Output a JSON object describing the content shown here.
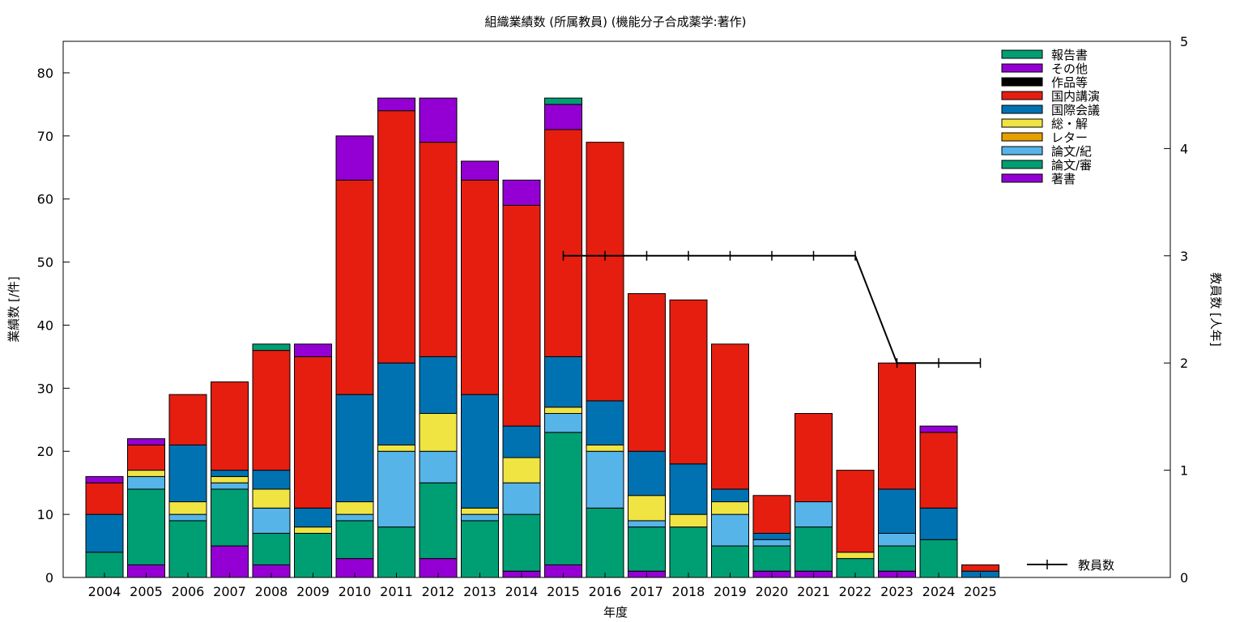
{
  "chart_data": {
    "type": "bar",
    "stacked": true,
    "title": "組織業績数 (所属教員) (機能分子合成薬学:著作)",
    "xlabel": "年度",
    "ylabel": "業績数 [/件]",
    "y2label": "教員数 [人年]",
    "ylim": [
      0,
      85
    ],
    "y2lim": [
      0,
      5
    ],
    "yticks": [
      0,
      10,
      20,
      30,
      40,
      50,
      60,
      70,
      80
    ],
    "y2ticks": [
      0,
      1,
      2,
      3,
      4,
      5
    ],
    "grid": false,
    "legend_position": "top-right",
    "categories": [
      "2004",
      "2005",
      "2006",
      "2007",
      "2008",
      "2009",
      "2010",
      "2011",
      "2012",
      "2013",
      "2014",
      "2015",
      "2016",
      "2017",
      "2018",
      "2019",
      "2020",
      "2021",
      "2022",
      "2023",
      "2024",
      "2025"
    ],
    "series": [
      {
        "name": "著書",
        "color": "#9400d3",
        "values": [
          0,
          2,
          0,
          5,
          2,
          0,
          3,
          0,
          3,
          0,
          1,
          2,
          0,
          1,
          0,
          0,
          1,
          1,
          0,
          1,
          0,
          0
        ]
      },
      {
        "name": "論文/審",
        "color": "#009e73",
        "values": [
          4,
          12,
          9,
          9,
          5,
          7,
          6,
          8,
          12,
          9,
          9,
          21,
          11,
          7,
          8,
          5,
          4,
          7,
          3,
          4,
          6,
          0
        ]
      },
      {
        "name": "論文/紀",
        "color": "#56b4e9",
        "values": [
          0,
          2,
          1,
          1,
          4,
          0,
          1,
          12,
          5,
          1,
          5,
          3,
          9,
          1,
          0,
          5,
          1,
          4,
          0,
          2,
          0,
          0
        ]
      },
      {
        "name": "レター",
        "color": "#e69f00",
        "values": [
          0,
          0,
          0,
          0,
          0,
          0,
          0,
          0,
          0,
          0,
          0,
          0,
          0,
          0,
          0,
          0,
          0,
          0,
          0,
          0,
          0,
          0
        ]
      },
      {
        "name": "総・解",
        "color": "#f0e442",
        "values": [
          0,
          1,
          2,
          1,
          3,
          1,
          2,
          1,
          6,
          1,
          4,
          1,
          1,
          4,
          2,
          2,
          0,
          0,
          1,
          0,
          0,
          0
        ]
      },
      {
        "name": "国際会議",
        "color": "#0072b2",
        "values": [
          6,
          0,
          9,
          1,
          3,
          3,
          17,
          13,
          9,
          18,
          5,
          8,
          7,
          7,
          8,
          2,
          1,
          0,
          0,
          7,
          5,
          1
        ]
      },
      {
        "name": "国内講演",
        "color": "#e51e10",
        "values": [
          5,
          4,
          8,
          14,
          19,
          24,
          34,
          40,
          34,
          34,
          35,
          36,
          41,
          25,
          26,
          23,
          6,
          14,
          13,
          20,
          12,
          1
        ]
      },
      {
        "name": "作品等",
        "color": "#000000",
        "values": [
          0,
          0,
          0,
          0,
          0,
          0,
          0,
          0,
          0,
          0,
          0,
          0,
          0,
          0,
          0,
          0,
          0,
          0,
          0,
          0,
          0,
          0
        ]
      },
      {
        "name": "その他",
        "color": "#9400d3",
        "values": [
          1,
          1,
          0,
          0,
          0,
          2,
          7,
          2,
          7,
          3,
          4,
          4,
          0,
          0,
          0,
          0,
          0,
          0,
          0,
          0,
          1,
          0
        ]
      },
      {
        "name": "報告書",
        "color": "#009e73",
        "values": [
          0,
          0,
          0,
          0,
          1,
          0,
          0,
          0,
          0,
          0,
          0,
          1,
          0,
          0,
          0,
          0,
          0,
          0,
          0,
          0,
          0,
          0
        ]
      }
    ],
    "legend_order": [
      "報告書",
      "その他",
      "作品等",
      "国内講演",
      "国際会議",
      "総・解",
      "レター",
      "論文/紀",
      "論文/審",
      "著書"
    ],
    "line": {
      "name": "教員数",
      "axis": "y2",
      "x": [
        "2015",
        "2016",
        "2017",
        "2018",
        "2019",
        "2020",
        "2021",
        "2022",
        "2023",
        "2024",
        "2025"
      ],
      "values": [
        3,
        3,
        3,
        3,
        3,
        3,
        3,
        3,
        2,
        2,
        2
      ]
    }
  }
}
